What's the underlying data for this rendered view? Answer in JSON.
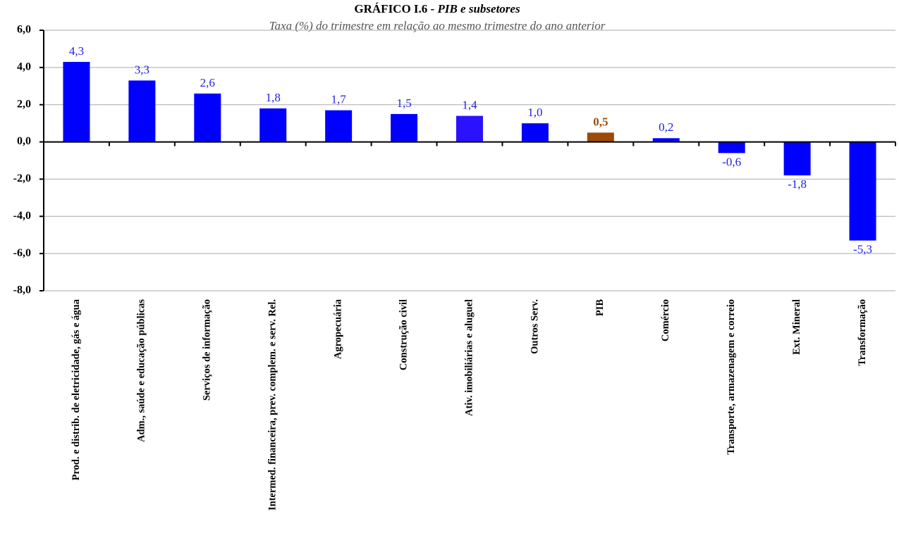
{
  "chart_data": {
    "type": "bar",
    "title": "GRÁFICO I.6 -",
    "title_emphasis": "PIB e subsetores",
    "subtitle": "Taxa (%) do trimestre em relação ao mesmo trimestre do ano anterior",
    "categories": [
      "Prod. e distrib. de eletricidade, gás e água",
      "Adm., saúde e educação públicas",
      "Serviços de informação",
      "Intermed. financeira, prev. complem. e serv. Rel.",
      "Agropecuária",
      "Construção civil",
      "Ativ. imobiliárias e aluguel",
      "Outros Serv.",
      "PIB",
      "Comércio",
      "Transporte, armazenagem e correio",
      "Ext. Mineral",
      "Transformação"
    ],
    "values": [
      4.3,
      3.3,
      2.6,
      1.8,
      1.7,
      1.5,
      1.4,
      1.0,
      0.5,
      0.2,
      -0.6,
      -1.8,
      -5.3
    ],
    "value_labels": [
      "4,3",
      "3,3",
      "2,6",
      "1,8",
      "1,7",
      "1,5",
      "1,4",
      "1,0",
      "0,5",
      "0,2",
      "-0,6",
      "-1,8",
      "-5,3"
    ],
    "colors": [
      "#0000ff",
      "#0000ff",
      "#0000ff",
      "#0000ff",
      "#0000ff",
      "#0000ff",
      "#2a12ff",
      "#0000ff",
      "#9c4a06",
      "#0000ff",
      "#0000ff",
      "#0000ff",
      "#0000ff"
    ],
    "highlight_index": 8,
    "ylim": [
      -8,
      6
    ],
    "yticks": [
      {
        "value": -8,
        "label": "-8,0"
      },
      {
        "value": -6,
        "label": "-6,0"
      },
      {
        "value": -4,
        "label": "-4,0"
      },
      {
        "value": -2,
        "label": "-2,0"
      },
      {
        "value": 0,
        "label": "0,0"
      },
      {
        "value": 2,
        "label": "2,0"
      },
      {
        "value": 4,
        "label": "4,0"
      },
      {
        "value": 6,
        "label": "6,0"
      }
    ],
    "grid": true
  }
}
